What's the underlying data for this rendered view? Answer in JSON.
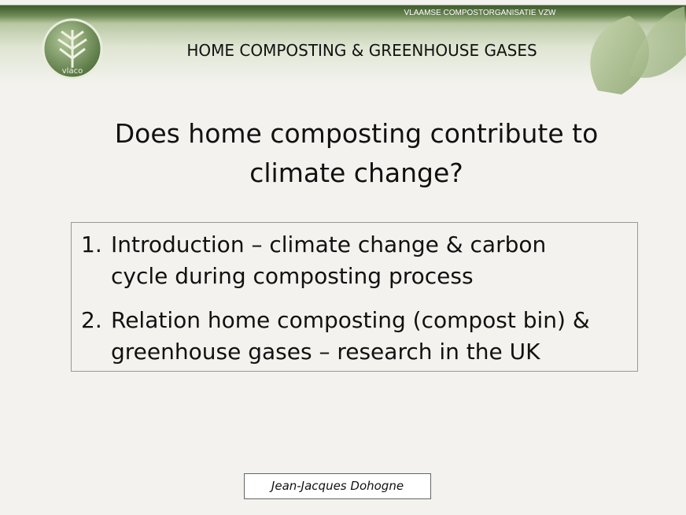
{
  "header": {
    "organization": "VLAAMSE COMPOSTORGANISATIE VZW",
    "title": "HOME COMPOSTING & GREENHOUSE GASES",
    "logo_text": "vlaco"
  },
  "slide": {
    "title_lines": [
      "Does home composting contribute to",
      "climate change?"
    ],
    "items": [
      {
        "number": "1.",
        "lines": [
          "Introduction – climate change & carbon",
          "cycle during composting process"
        ]
      },
      {
        "number": "2.",
        "lines": [
          "Relation home composting (compost bin) &",
          "greenhouse gases – research in the UK"
        ]
      }
    ],
    "author": "Jean-Jacques Dohogne"
  }
}
